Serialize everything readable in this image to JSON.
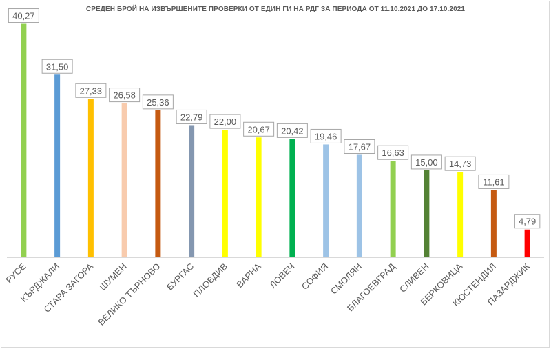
{
  "chart_data": {
    "type": "bar",
    "title": "СРЕДЕН БРОЙ НА ИЗВЪРШЕНИТЕ ПРОВЕРКИ ОТ ЕДИН ГИ НА РДГ ЗА ПЕРИОДА ОТ 11.10.2021 ДО 17.10.2021",
    "categories": [
      "РУСЕ",
      "КЪРДЖАЛИ",
      "СТАРА ЗАГОРА",
      "ШУМЕН",
      "ВЕЛИКО ТЪРНОВО",
      "БУРГАС",
      "ПЛОВДИВ",
      "ВАРНА",
      "ЛОВЕЧ",
      "СОФИЯ",
      "СМОЛЯН",
      "БЛАГОЕВГРАД",
      "СЛИВЕН",
      "БЕРКОВИЦА",
      "КЮСТЕНДИЛ",
      "ПАЗАРДЖИК"
    ],
    "values": [
      40.27,
      31.5,
      27.33,
      26.58,
      25.36,
      22.79,
      22.0,
      20.67,
      20.42,
      19.46,
      17.67,
      16.63,
      15.0,
      14.73,
      11.61,
      4.79
    ],
    "value_labels": [
      "40,27",
      "31,50",
      "27,33",
      "26,58",
      "25,36",
      "22,79",
      "22,00",
      "20,67",
      "20,42",
      "19,46",
      "17,67",
      "16,63",
      "15,00",
      "14,73",
      "11,61",
      "4,79"
    ],
    "colors": [
      "#92d050",
      "#5b9bd5",
      "#ffc000",
      "#f8cbad",
      "#c55a11",
      "#8497b0",
      "#ffff00",
      "#ffff00",
      "#00b050",
      "#9dc3e6",
      "#9dc3e6",
      "#92d050",
      "#548235",
      "#ffff00",
      "#c55a11",
      "#ff0000"
    ],
    "ylim": [
      0,
      42
    ],
    "grid": false,
    "legend": "none"
  }
}
